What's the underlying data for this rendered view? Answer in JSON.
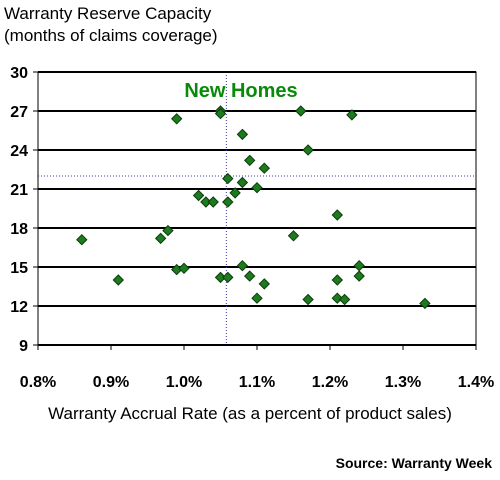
{
  "chart_data": {
    "type": "scatter",
    "title": "Warranty Reserve Capacity",
    "subtitle": "(months of claims coverage)",
    "xlabel": "Warranty Accrual Rate (as a percent of product sales)",
    "ylabel": "",
    "source": "Source: Warranty Week",
    "annotation": "New Homes",
    "xlim": [
      0.8,
      1.4
    ],
    "ylim": [
      9,
      30
    ],
    "x_ticks": [
      "0.8%",
      "0.9%",
      "1.0%",
      "1.1%",
      "1.2%",
      "1.3%",
      "1.4%"
    ],
    "x_tick_values": [
      0.8,
      0.9,
      1.0,
      1.1,
      1.2,
      1.3,
      1.4
    ],
    "y_ticks": [
      "9",
      "12",
      "15",
      "18",
      "21",
      "24",
      "27",
      "30"
    ],
    "y_tick_values": [
      9,
      12,
      15,
      18,
      21,
      24,
      27,
      30
    ],
    "grid": "horizontal",
    "reference_lines": {
      "x": 1.058,
      "y": 22.0
    },
    "points": [
      {
        "x": 0.86,
        "y": 17.1
      },
      {
        "x": 0.91,
        "y": 14.0
      },
      {
        "x": 0.968,
        "y": 17.2
      },
      {
        "x": 0.978,
        "y": 17.8
      },
      {
        "x": 0.99,
        "y": 26.4
      },
      {
        "x": 0.99,
        "y": 14.8
      },
      {
        "x": 1.0,
        "y": 14.9
      },
      {
        "x": 1.02,
        "y": 20.5
      },
      {
        "x": 1.03,
        "y": 20.0
      },
      {
        "x": 1.04,
        "y": 20.0
      },
      {
        "x": 1.05,
        "y": 27.0
      },
      {
        "x": 1.05,
        "y": 26.8
      },
      {
        "x": 1.05,
        "y": 14.2
      },
      {
        "x": 1.06,
        "y": 21.8
      },
      {
        "x": 1.06,
        "y": 20.0
      },
      {
        "x": 1.06,
        "y": 14.2
      },
      {
        "x": 1.07,
        "y": 20.7
      },
      {
        "x": 1.08,
        "y": 25.2
      },
      {
        "x": 1.08,
        "y": 21.5
      },
      {
        "x": 1.08,
        "y": 15.1
      },
      {
        "x": 1.09,
        "y": 23.2
      },
      {
        "x": 1.09,
        "y": 14.3
      },
      {
        "x": 1.1,
        "y": 21.1
      },
      {
        "x": 1.1,
        "y": 12.6
      },
      {
        "x": 1.11,
        "y": 22.6
      },
      {
        "x": 1.11,
        "y": 13.7
      },
      {
        "x": 1.15,
        "y": 17.4
      },
      {
        "x": 1.16,
        "y": 27.0
      },
      {
        "x": 1.17,
        "y": 24.0
      },
      {
        "x": 1.17,
        "y": 12.5
      },
      {
        "x": 1.21,
        "y": 19.0
      },
      {
        "x": 1.21,
        "y": 14.0
      },
      {
        "x": 1.21,
        "y": 12.6
      },
      {
        "x": 1.22,
        "y": 12.5
      },
      {
        "x": 1.23,
        "y": 26.7
      },
      {
        "x": 1.24,
        "y": 15.1
      },
      {
        "x": 1.24,
        "y": 14.3
      },
      {
        "x": 1.33,
        "y": 12.2
      }
    ],
    "colors": {
      "marker_fill": "#1e7a1e",
      "marker_stroke": "#0b3d0b",
      "annotation": "#0a8a0a",
      "reference_line": "#3a3aaa",
      "grid": "#000000"
    }
  }
}
